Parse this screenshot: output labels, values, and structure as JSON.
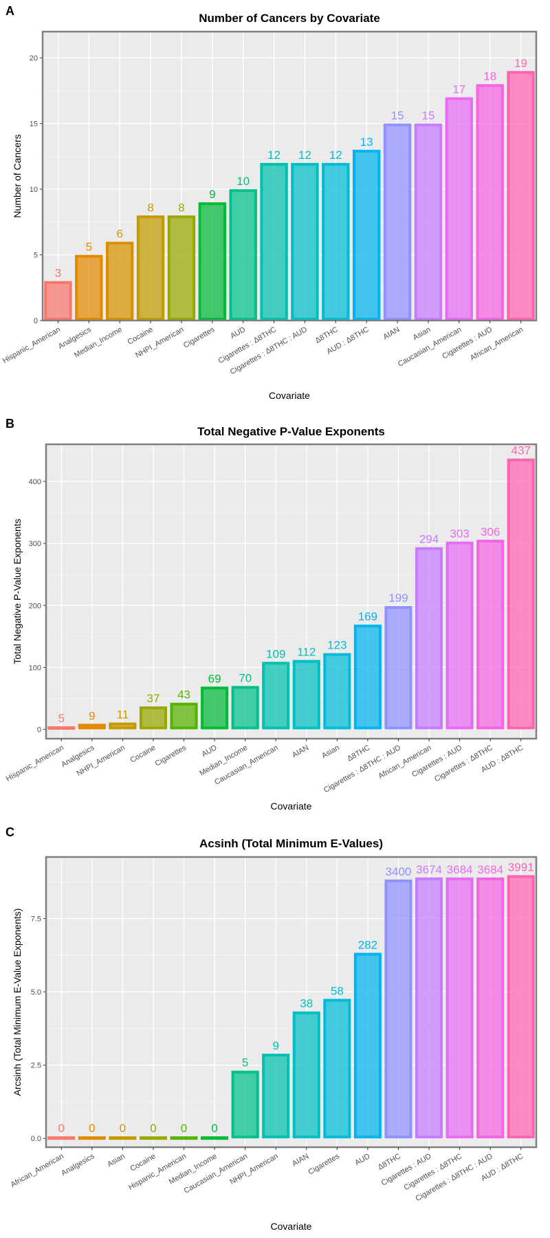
{
  "chart_data": [
    {
      "type": "bar",
      "panel_label": "A",
      "title": "Number of Cancers by Covariate",
      "xlabel": "Covariate",
      "ylabel": "Number of Cancers",
      "ylim": [
        0,
        22
      ],
      "yticks": [
        0,
        5,
        10,
        15,
        20
      ],
      "ytick_labels": [
        "0",
        "5",
        "10",
        "15",
        "20"
      ],
      "grid": true,
      "categories": [
        "Hispanic_American",
        "Analgesics",
        "Median_Income",
        "Cocaine",
        "NHPI_American",
        "Cigarettes",
        "AUD",
        "Cigarettes : Δ8THC",
        "Cigarettes : Δ8THC : AUD",
        "Δ8THC",
        "AUD : Δ8THC",
        "AIAN",
        "Asian",
        "Caucasian_American",
        "Cigarettes : AUD",
        "African_American"
      ],
      "values": [
        3,
        5,
        6,
        8,
        8,
        9,
        10,
        12,
        12,
        12,
        13,
        15,
        15,
        17,
        18,
        19
      ],
      "labels": [
        "3",
        "5",
        "6",
        "8",
        "8",
        "9",
        "10",
        "12",
        "12",
        "12",
        "13",
        "15",
        "15",
        "17",
        "18",
        "19"
      ]
    },
    {
      "type": "bar",
      "panel_label": "B",
      "title": "Total Negative P-Value Exponents",
      "xlabel": "Covariate",
      "ylabel": "Total Negative P-Value Exponents",
      "ylim": [
        -15,
        460
      ],
      "yticks": [
        0,
        100,
        200,
        300,
        400
      ],
      "ytick_labels": [
        "0",
        "100",
        "200",
        "300",
        "400"
      ],
      "grid": true,
      "categories": [
        "Hispanic_American",
        "Analgesics",
        "NHPI_American",
        "Cocaine",
        "Cigarettes",
        "AUD",
        "Median_Income",
        "Caucasian_American",
        "AIAN",
        "Asian",
        "Δ8THC",
        "Cigarettes : Δ8THC : AUD",
        "African_American",
        "Cigarettes : AUD",
        "Cigarettes : Δ8THC",
        "AUD : Δ8THC"
      ],
      "values": [
        5,
        9,
        11,
        37,
        43,
        69,
        70,
        109,
        112,
        123,
        169,
        199,
        294,
        303,
        306,
        437
      ],
      "labels": [
        "5",
        "9",
        "11",
        "37",
        "43",
        "69",
        "70",
        "109",
        "112",
        "123",
        "169",
        "199",
        "294",
        "303",
        "306",
        "437"
      ]
    },
    {
      "type": "bar",
      "panel_label": "C",
      "title": "Acsinh (Total Minimum E-Values)",
      "xlabel": "Covariate",
      "ylabel": "Arcsinh (Total Minimum E-Value Exponents)",
      "ylim": [
        -0.3,
        9.6
      ],
      "yticks": [
        0,
        2.5,
        5,
        7.5
      ],
      "ytick_labels": [
        "0.0",
        "2.5",
        "5.0",
        "7.5"
      ],
      "grid": true,
      "categories": [
        "African_American",
        "Analgesics",
        "Asian",
        "Cocaine",
        "Hispanic_American",
        "Median_Income",
        "Caucasian_American",
        "NHPI_American",
        "AIAN",
        "Cigarettes",
        "AUD",
        "Δ8THC",
        "Cigarettes : AUD",
        "Cigarettes : Δ8THC",
        "Cigarettes : Δ8THC : AUD",
        "AUD : Δ8THC"
      ],
      "values": [
        0,
        0,
        0,
        0,
        0,
        0,
        2.31,
        2.89,
        4.33,
        4.76,
        6.33,
        8.83,
        8.9,
        8.9,
        8.9,
        8.98
      ],
      "labels": [
        "0",
        "0",
        "0",
        "0",
        "0",
        "0",
        "5",
        "9",
        "38",
        "58",
        "282",
        "3400",
        "3674",
        "3684",
        "3684",
        "3991"
      ]
    }
  ],
  "palette": [
    "#F8766D",
    "#E38900",
    "#C49A00",
    "#99A800",
    "#53B400",
    "#00BC56",
    "#00C094",
    "#00BFC4",
    "#00B6EB",
    "#06A4FF",
    "#A58AFF",
    "#DF70F8",
    "#FB61D7",
    "#FF66A8"
  ],
  "bar_colors": [
    [
      "#F8766D",
      "#E38900",
      "#D89000",
      "#C49A00",
      "#99A800",
      "#00BA38",
      "#00C08B",
      "#00C0AF",
      "#00BFC4",
      "#00BCD8",
      "#00B4F0",
      "#8F91FF",
      "#C77CFF",
      "#E76BF3",
      "#F564E3",
      "#FF64B0"
    ],
    [
      "#F8766D",
      "#E38900",
      "#C49A00",
      "#99A800",
      "#53B400",
      "#00BA38",
      "#00C08B",
      "#00C0AF",
      "#00BFC4",
      "#00BCD8",
      "#00B4F0",
      "#8F91FF",
      "#C77CFF",
      "#E76BF3",
      "#F564E3",
      "#FF64B0"
    ],
    [
      "#F8766D",
      "#E38900",
      "#C49A00",
      "#99A800",
      "#53B400",
      "#00BA38",
      "#00C08B",
      "#00C0AF",
      "#00BFC4",
      "#00BCD8",
      "#00B4F0",
      "#8F91FF",
      "#C77CFF",
      "#E76BF3",
      "#F564E3",
      "#FF64B0"
    ]
  ]
}
